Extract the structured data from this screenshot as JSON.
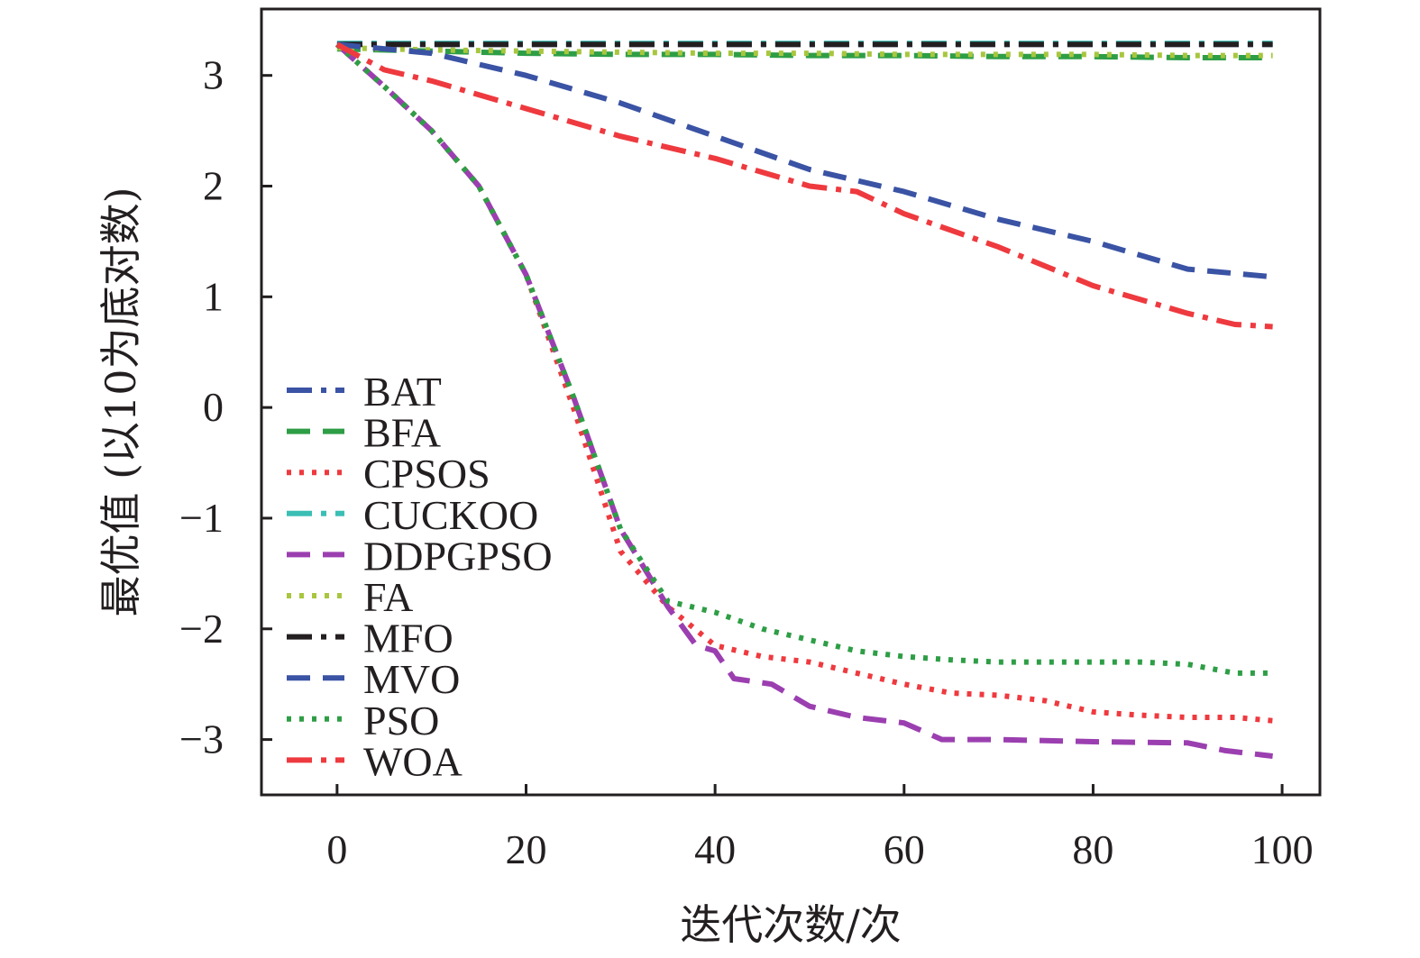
{
  "chart_data": {
    "type": "line",
    "title": "",
    "xlabel": "迭代次数/次",
    "ylabel": "最优值 (以10为底对数)",
    "xlim": [
      -8,
      104
    ],
    "ylim": [
      -3.5,
      3.6
    ],
    "xticks": [
      0,
      20,
      40,
      60,
      80,
      100
    ],
    "yticks": [
      -3,
      -2,
      -1,
      0,
      1,
      2,
      3
    ],
    "xtick_labels": [
      "0",
      "20",
      "40",
      "60",
      "80",
      "100"
    ],
    "ytick_labels": [
      "−3",
      "−2",
      "−1",
      "0",
      "1",
      "2",
      "3"
    ],
    "grid": false,
    "legend_position": "lower-left",
    "series": [
      {
        "name": "BAT",
        "color": "#3a53a4",
        "dash": "dashdot",
        "x": [
          0,
          10,
          20,
          30,
          40,
          50,
          60,
          70,
          80,
          90,
          99
        ],
        "y": [
          3.28,
          3.28,
          3.28,
          3.28,
          3.28,
          3.28,
          3.28,
          3.28,
          3.28,
          3.28,
          3.28
        ]
      },
      {
        "name": "BFA",
        "color": "#2e9e46",
        "dash": "dashed",
        "x": [
          0,
          10,
          20,
          30,
          40,
          50,
          60,
          70,
          80,
          90,
          99
        ],
        "y": [
          3.24,
          3.22,
          3.2,
          3.19,
          3.19,
          3.18,
          3.18,
          3.17,
          3.17,
          3.16,
          3.16
        ]
      },
      {
        "name": "CPSOS",
        "color": "#ee3a3f",
        "dash": "dotted",
        "x": [
          0,
          5,
          10,
          15,
          20,
          25,
          30,
          35,
          40,
          45,
          50,
          55,
          60,
          65,
          70,
          75,
          80,
          85,
          90,
          95,
          99
        ],
        "y": [
          3.28,
          2.9,
          2.5,
          2.0,
          1.2,
          0.0,
          -1.3,
          -1.8,
          -2.15,
          -2.25,
          -2.3,
          -2.4,
          -2.5,
          -2.58,
          -2.6,
          -2.65,
          -2.75,
          -2.78,
          -2.8,
          -2.8,
          -2.83
        ]
      },
      {
        "name": "CUCKOO",
        "color": "#3bbfb5",
        "dash": "dashdot",
        "x": [
          0,
          10,
          20,
          30,
          40,
          50,
          60,
          70,
          80,
          90,
          99
        ],
        "y": [
          3.29,
          3.29,
          3.29,
          3.29,
          3.29,
          3.29,
          3.29,
          3.29,
          3.29,
          3.29,
          3.29
        ]
      },
      {
        "name": "DDPGPSO",
        "color": "#9b3fb0",
        "dash": "dashed",
        "x": [
          0,
          5,
          10,
          15,
          20,
          25,
          30,
          35,
          38,
          40,
          42,
          46,
          50,
          55,
          60,
          64,
          70,
          80,
          90,
          94,
          99
        ],
        "y": [
          3.28,
          2.9,
          2.5,
          2.0,
          1.2,
          0.1,
          -1.1,
          -1.8,
          -2.15,
          -2.2,
          -2.45,
          -2.5,
          -2.7,
          -2.8,
          -2.85,
          -3.0,
          -3.0,
          -3.02,
          -3.03,
          -3.1,
          -3.15
        ]
      },
      {
        "name": "FA",
        "color": "#a8c63e",
        "dash": "dotted",
        "x": [
          0,
          10,
          20,
          30,
          40,
          50,
          60,
          70,
          80,
          90,
          99
        ],
        "y": [
          3.25,
          3.23,
          3.22,
          3.21,
          3.2,
          3.2,
          3.19,
          3.19,
          3.19,
          3.18,
          3.18
        ]
      },
      {
        "name": "MFO",
        "color": "#231f20",
        "dash": "dashdot",
        "x": [
          0,
          10,
          20,
          30,
          40,
          50,
          60,
          70,
          80,
          90,
          99
        ],
        "y": [
          3.28,
          3.28,
          3.28,
          3.28,
          3.28,
          3.28,
          3.28,
          3.28,
          3.28,
          3.28,
          3.28
        ]
      },
      {
        "name": "MVO",
        "color": "#3a53a4",
        "dash": "dashed",
        "x": [
          0,
          10,
          20,
          30,
          40,
          50,
          60,
          70,
          80,
          90,
          99
        ],
        "y": [
          3.28,
          3.2,
          3.0,
          2.75,
          2.45,
          2.15,
          1.95,
          1.7,
          1.5,
          1.25,
          1.18
        ]
      },
      {
        "name": "PSO",
        "color": "#2e9e46",
        "dash": "dotted",
        "x": [
          0,
          5,
          10,
          15,
          20,
          25,
          30,
          35,
          40,
          45,
          50,
          55,
          60,
          65,
          70,
          75,
          80,
          85,
          90,
          95,
          99
        ],
        "y": [
          3.28,
          2.9,
          2.5,
          2.0,
          1.2,
          0.1,
          -1.1,
          -1.75,
          -1.85,
          -2.0,
          -2.1,
          -2.2,
          -2.25,
          -2.28,
          -2.3,
          -2.3,
          -2.3,
          -2.3,
          -2.32,
          -2.4,
          -2.4
        ]
      },
      {
        "name": "WOA",
        "color": "#ee3a3f",
        "dash": "dashdot",
        "x": [
          0,
          5,
          10,
          20,
          30,
          40,
          50,
          55,
          60,
          70,
          80,
          90,
          95,
          99
        ],
        "y": [
          3.28,
          3.05,
          2.95,
          2.7,
          2.45,
          2.25,
          2.0,
          1.95,
          1.75,
          1.45,
          1.1,
          0.85,
          0.75,
          0.73
        ]
      }
    ]
  }
}
